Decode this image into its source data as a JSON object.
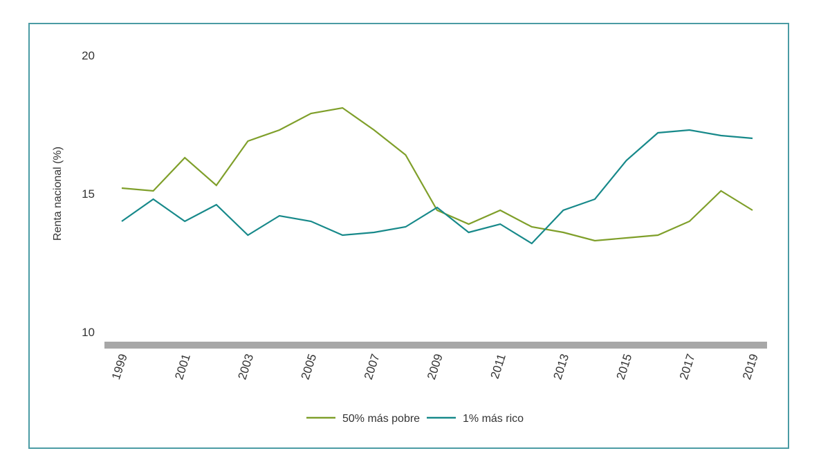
{
  "chart_data": {
    "type": "line",
    "title": "",
    "xlabel": "",
    "ylabel": "Renta nacional (%)",
    "ylim": [
      10,
      20
    ],
    "yticks": [
      "10",
      "15",
      "20"
    ],
    "x": [
      1999,
      2000,
      2001,
      2002,
      2003,
      2004,
      2005,
      2006,
      2007,
      2008,
      2009,
      2010,
      2011,
      2012,
      2013,
      2014,
      2015,
      2016,
      2017,
      2018,
      2019
    ],
    "xtick_labels": [
      "1999",
      "2001",
      "2003",
      "2005",
      "2007",
      "2009",
      "2011",
      "2013",
      "2015",
      "2017",
      "2019"
    ],
    "series": [
      {
        "name": "50% más pobre",
        "color": "#7f9f2a",
        "values": [
          15.2,
          15.1,
          16.3,
          15.3,
          16.9,
          17.3,
          17.9,
          18.1,
          17.3,
          16.4,
          14.4,
          13.9,
          14.4,
          13.8,
          13.6,
          13.3,
          13.4,
          13.5,
          14.0,
          15.1,
          14.4
        ]
      },
      {
        "name": "1% más rico",
        "color": "#17898a",
        "values": [
          14.0,
          14.8,
          14.0,
          14.6,
          13.5,
          14.2,
          14.0,
          13.5,
          13.6,
          13.8,
          14.5,
          13.6,
          13.9,
          13.2,
          14.4,
          14.8,
          16.2,
          17.2,
          17.3,
          17.1,
          17.0
        ]
      }
    ],
    "baseline_color": "#a7a7a7",
    "legend_position": "bottom-center"
  }
}
